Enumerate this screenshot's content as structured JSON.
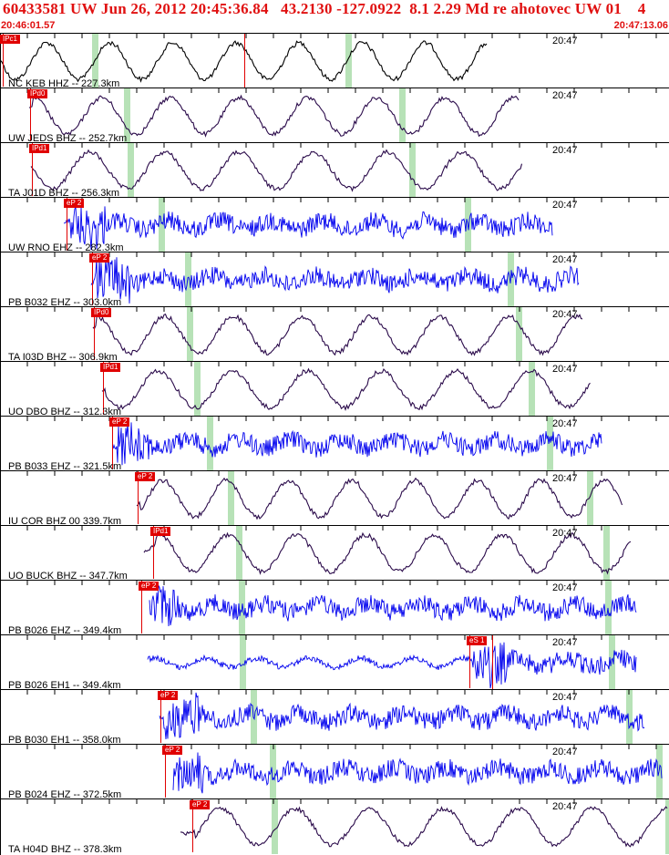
{
  "header": {
    "title": "60433581 UW Jun 26, 2012 20:45:36.84   43.2130 -127.0922  8.1 2.29 Md re ahotovec UW 01    4",
    "start_time": "20:46:01.57",
    "end_time": "20:47:13.06",
    "accent_color": "#e01010"
  },
  "colors": {
    "pick_bg": "#e00000",
    "green_bar": "#b7e2b7",
    "dark_trace": "#2a0a4a",
    "blue_trace": "#0000ee",
    "black_trace": "#000000"
  },
  "tracks": [
    {
      "label": "NC KEB HHZ -- 227.3km",
      "time": "20:47",
      "pick": "IPc1",
      "trace_color": "black"
    },
    {
      "label": "UW JEDS BHZ -- 252.7km",
      "time": "20:47",
      "pick": "IPd0",
      "trace_color": "dark"
    },
    {
      "label": "TA J01D BHZ -- 256.3km",
      "time": "20:47",
      "pick": "IPd1",
      "trace_color": "dark"
    },
    {
      "label": "UW RNO EHZ -- 282.3km",
      "time": "20:47",
      "pick": "eP 2",
      "trace_color": "blue"
    },
    {
      "label": "PB B032 EHZ -- 303.0km",
      "time": "20:47",
      "pick": "eP 2",
      "trace_color": "blue"
    },
    {
      "label": "TA I03D BHZ -- 306.9km",
      "time": "20:47",
      "pick": "IPd0",
      "trace_color": "dark"
    },
    {
      "label": "UO DBO BHZ -- 312.3km",
      "time": "20:47",
      "pick": "IPd1",
      "trace_color": "dark"
    },
    {
      "label": "PB B033 EHZ -- 321.5km",
      "time": "20:47",
      "pick": "eP 2",
      "trace_color": "blue"
    },
    {
      "label": "IU COR BHZ 00 339.7km",
      "time": "20:47",
      "pick": "eP 2",
      "trace_color": "dark"
    },
    {
      "label": "UO BUCK BHZ -- 347.7km",
      "time": "20:47",
      "pick": "IPd1",
      "trace_color": "dark"
    },
    {
      "label": "PB B026 EHZ -- 349.4km",
      "time": "20:47",
      "pick": "eP 2",
      "trace_color": "blue"
    },
    {
      "label": "PB B026 EH1 -- 349.4km",
      "time": "20:47",
      "pick": "eS 1",
      "trace_color": "blue"
    },
    {
      "label": "PB B030 EH1 -- 358.0km",
      "time": "20:47",
      "pick": "eP 2",
      "trace_color": "blue"
    },
    {
      "label": "PB B024 EHZ -- 372.5km",
      "time": "20:47",
      "pick": "eP 2",
      "trace_color": "blue"
    },
    {
      "label": "TA H04D BHZ -- 378.3km",
      "time": "20:47",
      "pick": "eP 2",
      "trace_color": "dark"
    }
  ]
}
